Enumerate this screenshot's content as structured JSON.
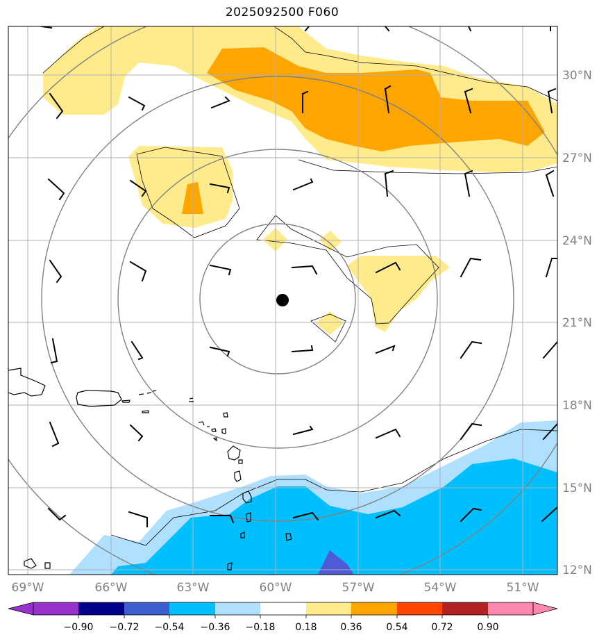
{
  "title": "2025092500 F060",
  "map": {
    "lat_labels": [
      "30°N",
      "27°N",
      "24°N",
      "21°N",
      "18°N",
      "15°N",
      "12°N"
    ],
    "lon_labels": [
      "69°W",
      "66°W",
      "63°W",
      "60°W",
      "57°W",
      "54°W",
      "51°W"
    ],
    "colors": {
      "strong_negative": "#00bfff",
      "weak_negative": "#b0e0ff",
      "weak_positive": "#ffeb8c",
      "moderate_positive": "#ffa500",
      "deep_negative": "#4f5bd5",
      "range_ring": "#808080",
      "coast": "#000000"
    },
    "storm_center": "black-dot"
  },
  "colorbar": {
    "labels": [
      "−0.90",
      "−0.72",
      "−0.54",
      "−0.36",
      "−0.18",
      "0.18",
      "0.36",
      "0.54",
      "0.72",
      "0.90"
    ],
    "colors": [
      "#9932cc",
      "#00008b",
      "#3a5fcd",
      "#00bfff",
      "#b0e0ff",
      "#ffffff",
      "#ffeb8c",
      "#ffa500",
      "#ff4500",
      "#b22222",
      "#ff88b0"
    ]
  }
}
